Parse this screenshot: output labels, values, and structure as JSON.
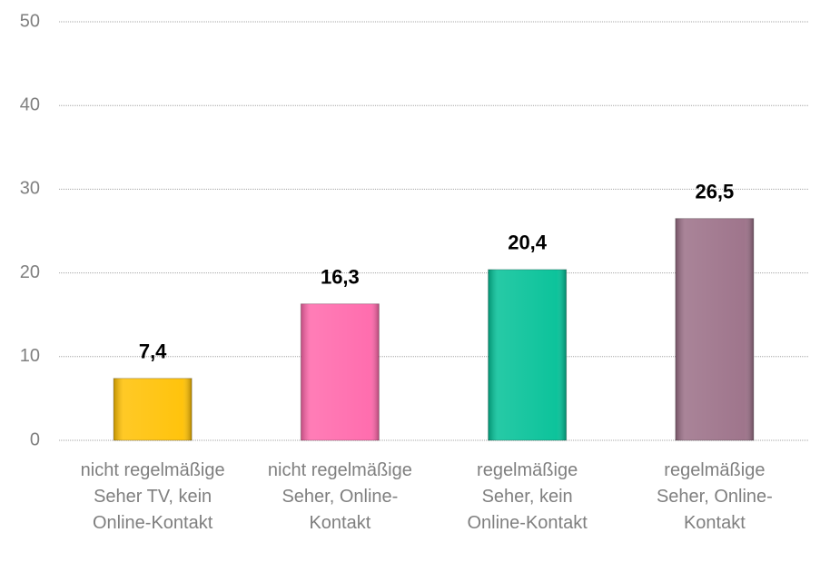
{
  "chart_data": {
    "type": "bar",
    "categories": [
      "nicht regelmäßige Seher TV, kein Online-Kontakt",
      "nicht regelmäßige Seher, Online-Kontakt",
      "regelmäßige Seher, kein Online-Kontakt",
      "regelmäßige Seher, Online-Kontakt"
    ],
    "values": [
      7.4,
      16.3,
      20.4,
      26.5
    ],
    "value_labels": [
      "7,4",
      "16,3",
      "20,4",
      "26,5"
    ],
    "colors": [
      "#ffc000",
      "#ff66aa",
      "#00c096",
      "#9a6e86"
    ],
    "ylim": [
      0,
      50
    ],
    "yticks": [
      0,
      10,
      20,
      30,
      40,
      50
    ],
    "grid": true
  }
}
